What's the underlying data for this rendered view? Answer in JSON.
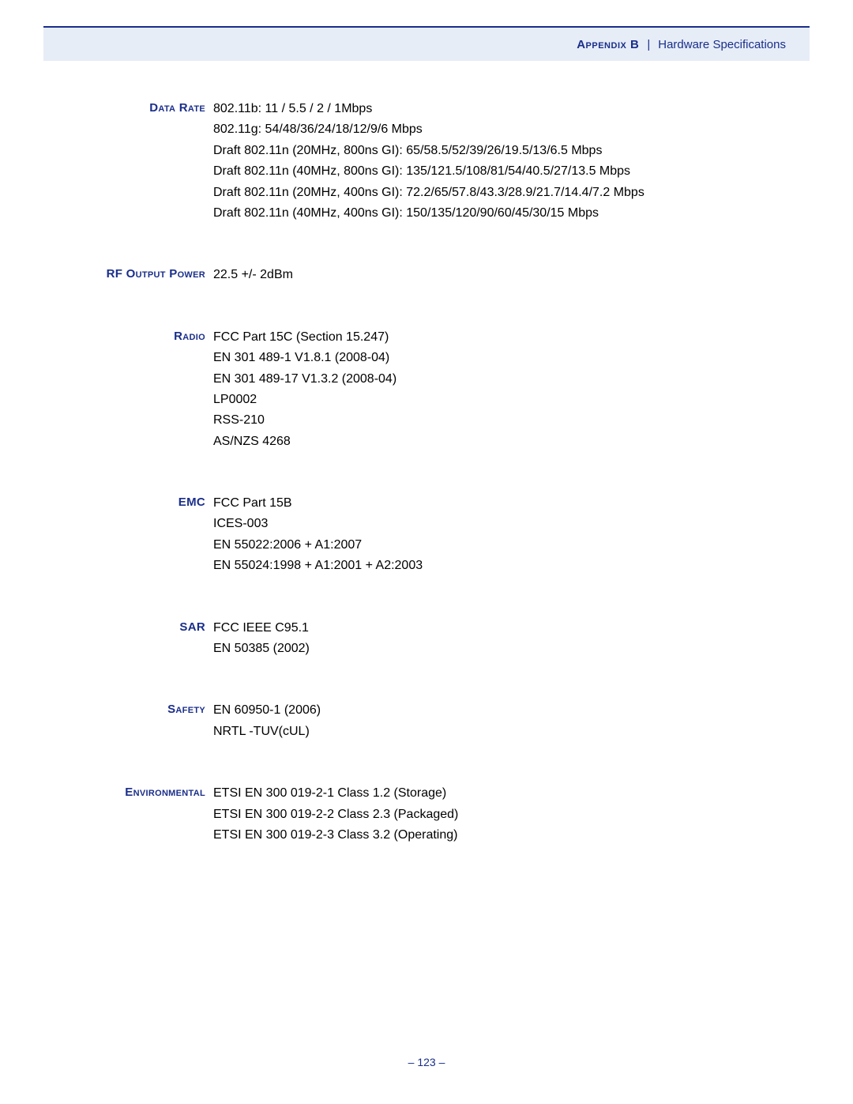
{
  "header": {
    "appendix": "Appendix B",
    "separator": "|",
    "title": "Hardware Specifications"
  },
  "specs": {
    "data_rate": {
      "label": "Data Rate",
      "lines": [
        "802.11b: 11 / 5.5 / 2 / 1Mbps",
        "802.11g: 54/48/36/24/18/12/9/6 Mbps",
        "Draft 802.11n (20MHz, 800ns GI): 65/58.5/52/39/26/19.5/13/6.5 Mbps",
        "Draft 802.11n (40MHz, 800ns GI): 135/121.5/108/81/54/40.5/27/13.5 Mbps",
        "Draft 802.11n (20MHz, 400ns GI): 72.2/65/57.8/43.3/28.9/21.7/14.4/7.2 Mbps",
        "Draft 802.11n (40MHz, 400ns GI): 150/135/120/90/60/45/30/15 Mbps"
      ]
    },
    "rf_output_power": {
      "label": "RF Output Power",
      "lines": [
        "22.5 +/- 2dBm"
      ]
    },
    "radio": {
      "label": "Radio",
      "lines": [
        "FCC Part 15C (Section 15.247)",
        "EN 301 489-1 V1.8.1 (2008-04)",
        "EN 301 489-17 V1.3.2 (2008-04)",
        "LP0002",
        "RSS-210",
        "AS/NZS 4268"
      ]
    },
    "emc": {
      "label": "EMC",
      "lines": [
        "FCC Part 15B",
        "ICES-003",
        "EN 55022:2006 + A1:2007",
        "EN 55024:1998 + A1:2001 + A2:2003"
      ]
    },
    "sar": {
      "label": "SAR",
      "lines": [
        "FCC IEEE C95.1",
        "EN 50385 (2002)"
      ]
    },
    "safety": {
      "label": "Safety",
      "lines": [
        "EN 60950-1 (2006)",
        "NRTL -TUV(cUL)"
      ]
    },
    "environmental": {
      "label": "Environmental",
      "lines": [
        "ETSI EN 300 019-2-1 Class 1.2 (Storage)",
        "ETSI EN 300 019-2-2 Class 2.3 (Packaged)",
        "ETSI EN 300 019-2-3 Class 3.2 (Operating)"
      ]
    }
  },
  "footer": {
    "page": "–  123  –"
  }
}
